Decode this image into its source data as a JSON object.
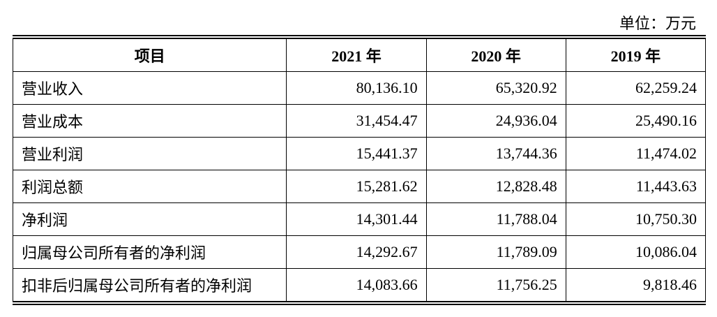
{
  "unit": "单位：万元",
  "table": {
    "header": [
      "项目",
      "2021 年",
      "2020 年",
      "2019 年"
    ],
    "rows": [
      [
        "营业收入",
        "80,136.10",
        "65,320.92",
        "62,259.24"
      ],
      [
        "营业成本",
        "31,454.47",
        "24,936.04",
        "25,490.16"
      ],
      [
        "营业利润",
        "15,441.37",
        "13,744.36",
        "11,474.02"
      ],
      [
        "利润总额",
        "15,281.62",
        "12,828.48",
        "11,443.63"
      ],
      [
        "净利润",
        "14,301.44",
        "11,788.04",
        "10,750.30"
      ],
      [
        "归属母公司所有者的净利润",
        "14,292.67",
        "11,789.09",
        "10,086.04"
      ],
      [
        "扣非后归属母公司所有者的净利润",
        "14,083.66",
        "11,756.25",
        "9,818.46"
      ]
    ]
  }
}
